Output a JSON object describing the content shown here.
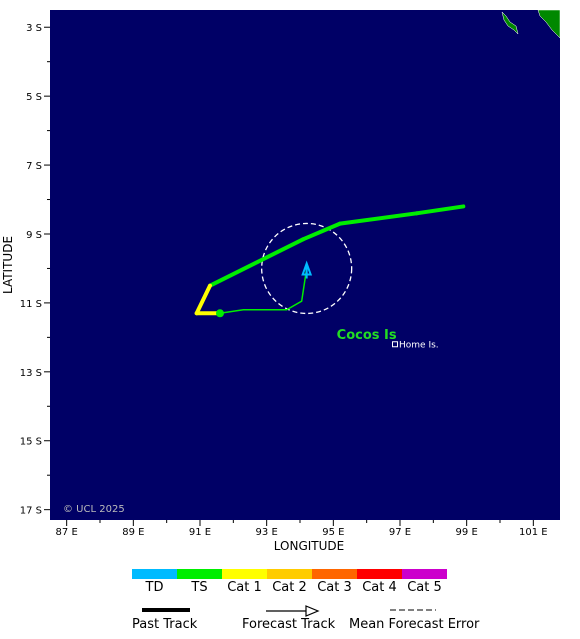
{
  "map": {
    "lon_range": [
      86.5,
      101.8
    ],
    "lat_range": [
      -17.3,
      -2.5
    ],
    "background_color": "#000066",
    "land_color": "#008800",
    "grid": false
  },
  "axes": {
    "xlabel": "LONGITUDE",
    "ylabel": "LATITUDE",
    "lat_ticks": [
      {
        "value": -3,
        "label": "3 S"
      },
      {
        "value": -5,
        "label": "5 S"
      },
      {
        "value": -7,
        "label": "7 S"
      },
      {
        "value": -9,
        "label": "9 S"
      },
      {
        "value": -11,
        "label": "11 S"
      },
      {
        "value": -13,
        "label": "13 S"
      },
      {
        "value": -15,
        "label": "15 S"
      },
      {
        "value": -17,
        "label": "17 S"
      }
    ],
    "lon_ticks": [
      {
        "value": 87,
        "label": "87 E"
      },
      {
        "value": 89,
        "label": "89 E"
      },
      {
        "value": 91,
        "label": "91 E"
      },
      {
        "value": 93,
        "label": "93 E"
      },
      {
        "value": 95,
        "label": "95 E"
      },
      {
        "value": 97,
        "label": "97 E"
      },
      {
        "value": 99,
        "label": "99 E"
      },
      {
        "value": 101,
        "label": "101 E"
      }
    ]
  },
  "places": {
    "region_label": "Cocos Is",
    "region_lon": 95.1,
    "region_lat": -12.05,
    "town_label": "Home Is.",
    "town_lon": 96.85,
    "town_lat": -12.2
  },
  "tracks": {
    "past_track": [
      {
        "lon": 98.9,
        "lat": -8.2,
        "intensity": "TS"
      },
      {
        "lon": 97.5,
        "lat": -8.4,
        "intensity": "TS"
      },
      {
        "lon": 95.2,
        "lat": -8.7,
        "intensity": "TS"
      },
      {
        "lon": 94.1,
        "lat": -9.15,
        "intensity": "TS"
      },
      {
        "lon": 91.3,
        "lat": -10.5,
        "intensity": "TS"
      },
      {
        "lon": 90.9,
        "lat": -11.3,
        "intensity": "Cat 1"
      },
      {
        "lon": 91.6,
        "lat": -11.3,
        "intensity": "Cat 1"
      }
    ],
    "forecast_track": [
      {
        "lon": 91.6,
        "lat": -11.3
      },
      {
        "lon": 92.3,
        "lat": -11.2
      },
      {
        "lon": 93.6,
        "lat": -11.2
      },
      {
        "lon": 94.05,
        "lat": -10.95
      },
      {
        "lon": 94.2,
        "lat": -10.0
      }
    ],
    "current_position": {
      "lon": 91.6,
      "lat": -11.3
    },
    "error_circle": {
      "lon": 94.2,
      "lat": -10.0,
      "radius_deg": 1.35
    },
    "arrow_color": "#00bbff"
  },
  "intensity_scale": [
    {
      "label": "TD",
      "color": "#00bbff"
    },
    {
      "label": "TS",
      "color": "#00ee00"
    },
    {
      "label": "Cat 1",
      "color": "#ffff00"
    },
    {
      "label": "Cat 2",
      "color": "#ffcc00"
    },
    {
      "label": "Cat 3",
      "color": "#ff6600"
    },
    {
      "label": "Cat 4",
      "color": "#ff0000"
    },
    {
      "label": "Cat 5",
      "color": "#cc00cc"
    }
  ],
  "legend": {
    "past_track_label": "Past Track",
    "forecast_track_label": "Forecast Track",
    "error_label": "Mean Forecast Error"
  },
  "copyright": "© UCL 2025"
}
